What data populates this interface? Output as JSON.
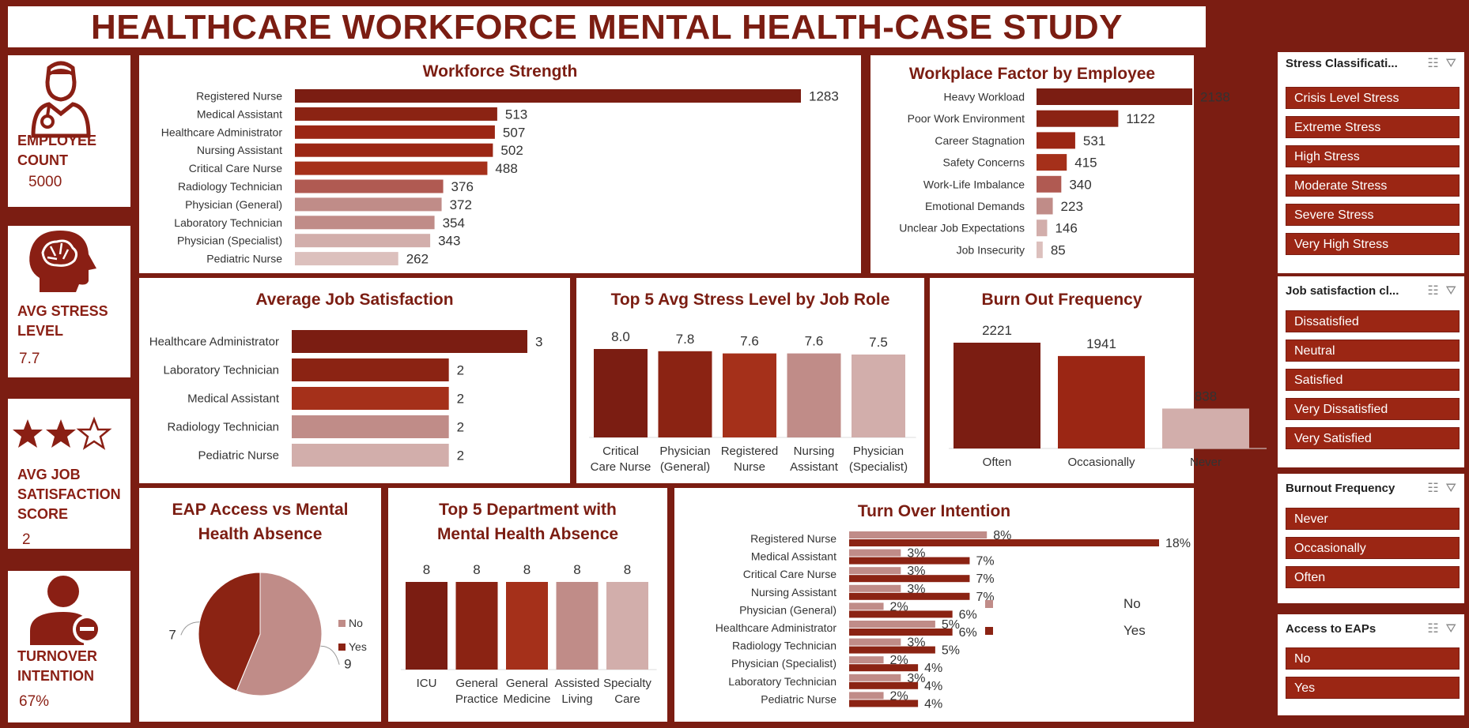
{
  "title": "HEALTHCARE WORKFORCE MENTAL HEALTH-CASE STUDY",
  "kpis": [
    {
      "label_l1": "EMPLOYEE",
      "label_l2": "COUNT",
      "value": "5000",
      "icon": "nurse-icon"
    },
    {
      "label_l1": "AVG STRESS",
      "label_l2": "LEVEL",
      "value": "7.7",
      "icon": "brain-head-icon"
    },
    {
      "label_l1": "AVG JOB",
      "label_l2": "SATISFACTION",
      "label_l3": "SCORE",
      "value": "2",
      "icon": "star-rating-icon",
      "stars_filled": 2,
      "stars_total": 3
    },
    {
      "label_l1": "TURNOVER",
      "label_l2": "INTENTION",
      "value": "67%",
      "icon": "user-minus-icon"
    }
  ],
  "colors": {
    "dark": "#7b1d12",
    "c1": "#8b2313",
    "c2": "#9b2614",
    "c3": "#a5301a",
    "c4": "#b05a52",
    "c5": "#c08c88",
    "c6": "#d2aeab",
    "c7": "#dcc0bd"
  },
  "workforce": {
    "title": "Workforce Strength",
    "chart_data": {
      "type": "bar",
      "categories": [
        "Registered Nurse",
        "Medical Assistant",
        "Healthcare Administrator",
        "Nursing Assistant",
        "Critical Care Nurse",
        "Radiology Technician",
        "Physician (General)",
        "Laboratory Technician",
        "Physician (Specialist)",
        "Pediatric Nurse"
      ],
      "values": [
        1283,
        513,
        507,
        502,
        488,
        376,
        372,
        354,
        343,
        262
      ]
    }
  },
  "workplace": {
    "title": "Workplace Factor by Employee",
    "chart_data": {
      "type": "bar",
      "categories": [
        "Heavy Workload",
        "Poor Work Environment",
        "Career Stagnation",
        "Safety Concerns",
        "Work-Life Imbalance",
        "Emotional Demands",
        "Unclear Job Expectations",
        "Job Insecurity"
      ],
      "values": [
        2138,
        1122,
        531,
        415,
        340,
        223,
        146,
        85
      ]
    }
  },
  "jobsat": {
    "title": "Average Job Satisfaction",
    "chart_data": {
      "type": "bar",
      "categories": [
        "Healthcare Administrator",
        "Laboratory Technician",
        "Medical Assistant",
        "Radiology Technician",
        "Pediatric Nurse"
      ],
      "values": [
        3,
        2,
        2,
        2,
        2
      ]
    }
  },
  "stress": {
    "title": "Top 5 Avg Stress Level by Job Role",
    "chart_data": {
      "type": "bar",
      "categories": [
        [
          "Critical",
          "Care Nurse"
        ],
        [
          "Physician",
          "(General)"
        ],
        [
          "Registered",
          "Nurse"
        ],
        [
          "Nursing",
          "Assistant"
        ],
        [
          "Physician",
          "(Specialist)"
        ]
      ],
      "values": [
        8.0,
        7.8,
        7.6,
        7.6,
        7.5
      ],
      "labels": [
        "8.0",
        "7.8",
        "7.6",
        "7.6",
        "7.5"
      ]
    }
  },
  "burnout": {
    "title": "Burn Out Frequency",
    "chart_data": {
      "type": "bar",
      "categories": [
        "Often",
        "Occasionally",
        "Never"
      ],
      "values": [
        2221,
        1941,
        838
      ]
    }
  },
  "eap": {
    "title_l1": "EAP Access vs Mental",
    "title_l2": "Health Absence",
    "chart_data": {
      "type": "pie",
      "series": [
        {
          "name": "No",
          "value": 9
        },
        {
          "name": "Yes",
          "value": 7
        }
      ]
    }
  },
  "dept": {
    "title_l1": "Top 5 Department with",
    "title_l2": "Mental Health Absence",
    "chart_data": {
      "type": "bar",
      "categories": [
        [
          "ICU",
          ""
        ],
        [
          "General",
          "Practice"
        ],
        [
          "General",
          "Medicine"
        ],
        [
          "Assisted",
          "Living"
        ],
        [
          "Specialty",
          "Care"
        ]
      ],
      "values": [
        8,
        8,
        8,
        8,
        8
      ]
    }
  },
  "turnover": {
    "title": "Turn Over Intention",
    "chart_data": {
      "type": "bar",
      "categories": [
        "Registered Nurse",
        "Medical Assistant",
        "Critical Care Nurse",
        "Nursing Assistant",
        "Physician (General)",
        "Healthcare Administrator",
        "Radiology Technician",
        "Physician (Specialist)",
        "Laboratory Technician",
        "Pediatric Nurse"
      ],
      "series": [
        {
          "name": "No",
          "values": [
            8,
            3,
            3,
            3,
            2,
            5,
            3,
            2,
            3,
            2
          ]
        },
        {
          "name": "Yes",
          "values": [
            18,
            7,
            7,
            7,
            6,
            6,
            5,
            4,
            4,
            4
          ]
        }
      ]
    }
  },
  "slicers": [
    {
      "title": "Stress Classificati...",
      "items": [
        "Crisis Level Stress",
        "Extreme Stress",
        "High Stress",
        "Moderate Stress",
        "Severe Stress",
        "Very High Stress"
      ]
    },
    {
      "title": "Job satisfaction cl...",
      "items": [
        "Dissatisfied",
        "Neutral",
        "Satisfied",
        "Very Dissatisfied",
        "Very Satisfied"
      ]
    },
    {
      "title": "Burnout Frequency",
      "items": [
        "Never",
        "Occasionally",
        "Often"
      ]
    },
    {
      "title": "Access to EAPs",
      "items": [
        "No",
        "Yes"
      ]
    }
  ]
}
